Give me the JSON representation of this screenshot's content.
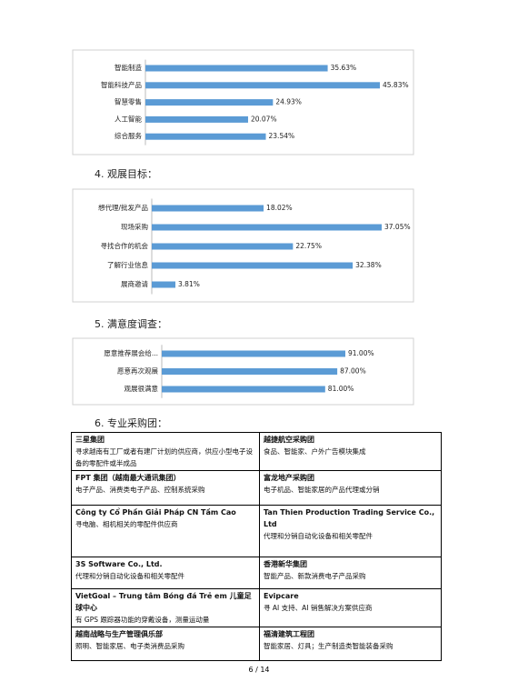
{
  "chart_data": [
    {
      "type": "bar",
      "orientation": "horizontal",
      "color": "#5b9bd5",
      "categories": [
        "智能制造",
        "智能科技产品",
        "智慧零售",
        "人工智能",
        "综合服务"
      ],
      "values": [
        35.63,
        45.83,
        24.93,
        20.07,
        23.54
      ],
      "value_labels": [
        "35.63%",
        "45.83%",
        "24.93%",
        "20.07%",
        "23.54%"
      ]
    },
    {
      "type": "bar",
      "orientation": "horizontal",
      "color": "#5b9bd5",
      "categories": [
        "想代理/批发产品",
        "现场采购",
        "寻找合作的机会",
        "了解行业信息",
        "展商邀请"
      ],
      "values": [
        18.02,
        37.05,
        22.75,
        32.38,
        3.81
      ],
      "value_labels": [
        "18.02%",
        "37.05%",
        "22.75%",
        "32.38%",
        "3.81%"
      ]
    },
    {
      "type": "bar",
      "orientation": "horizontal",
      "color": "#5b9bd5",
      "categories": [
        "愿意推荐展会给...",
        "愿意再次观展",
        "观展很满意"
      ],
      "values": [
        91,
        87,
        81
      ],
      "value_labels": [
        "91.00%",
        "87.00%",
        "81.00%"
      ]
    }
  ],
  "sections": [
    "4.  观展目标：",
    "5.  满意度调查：",
    "6.  专业采购团："
  ],
  "table": {
    "rows": [
      [
        {
          "name": "三星集团",
          "desc": "寻求越南有工厂或者有建厂计划的供应商，供应小型电子设备的零配件或半成品"
        },
        {
          "name": "越捷航空采购团",
          "desc": "食品、智能家、户外广告模块集成"
        }
      ],
      [
        {
          "name": "FPT 集团（越南最大通讯集团）",
          "desc": "电子产品、消费类电子产品、控制系统采购"
        },
        {
          "name": "富龙地产采购团",
          "desc": "电子机品、智能家居的产品代理或分销"
        }
      ],
      [
        {
          "name": "Công ty Cổ Phần Giải Pháp CN Tầm Cao",
          "desc": "寻电脑、相机相关的零配件供应商"
        },
        {
          "name": "Tan Thien Production Trading Service Co., Ltd",
          "desc": "代理和分销自动化设备和相关零配件"
        }
      ],
      [
        {
          "name": "3S Software Co., Ltd.",
          "desc": "代理和分销自动化设备和相关零配件"
        },
        {
          "name": "香港新华集团",
          "desc": "智能产品、新款消费电子产品采购"
        }
      ],
      [
        {
          "name": "VietGoal – Trung tâm Bóng đá Trẻ em 儿童足球中心",
          "desc": "有 GPS 跟踪器功能的穿戴设备，测量运动量"
        },
        {
          "name": "Evipcare",
          "desc": "寻 AI 支持、AI 销售解决方案供应商"
        }
      ],
      [
        {
          "name": "越南战略与生产管理俱乐部",
          "desc": "照明、智能家居、电子类消费品采购"
        },
        {
          "name": "福清建筑工程团",
          "desc": "智能家居、灯具；生产制造类智能装备采购"
        }
      ]
    ]
  },
  "footer": "6 / 14"
}
